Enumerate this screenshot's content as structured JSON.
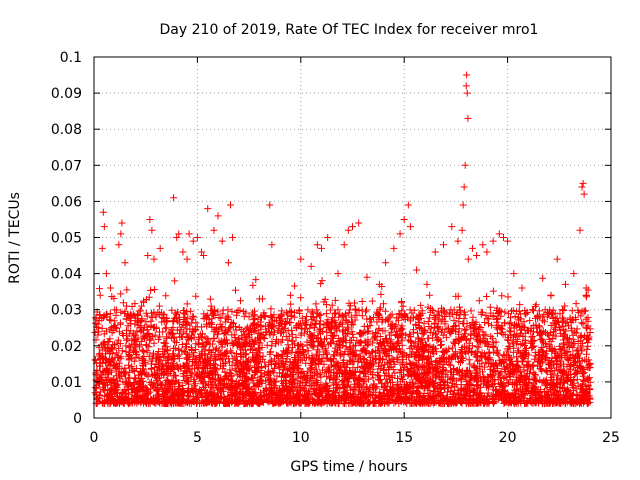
{
  "chart_data": {
    "type": "scatter",
    "title": "Day 210 of 2019, Rate Of TEC Index for receiver mro1",
    "xlabel": "GPS time / hours",
    "ylabel": "ROTI / TECUs",
    "xlim": [
      0,
      25
    ],
    "ylim": [
      0,
      0.1
    ],
    "xticks": [
      0,
      5,
      10,
      15,
      20,
      25
    ],
    "yticks": [
      0,
      0.01,
      0.02,
      0.03,
      0.04,
      0.05,
      0.06,
      0.07,
      0.08,
      0.09,
      0.1
    ],
    "xtick_labels": [
      "0",
      "5",
      "10",
      "15",
      "20",
      "25"
    ],
    "ytick_labels": [
      "0",
      "0.01",
      "0.02",
      "0.03",
      "0.04",
      "0.05",
      "0.06",
      "0.07",
      "0.08",
      "0.09",
      "0.1"
    ],
    "grid": true,
    "marker": "+",
    "series": [
      {
        "name": "ROTI",
        "color": "#ff0000",
        "points": [
          [
            0.1,
            0.012
          ],
          [
            0.2,
            0.025
          ],
          [
            0.3,
            0.034
          ],
          [
            0.4,
            0.047
          ],
          [
            0.45,
            0.057
          ],
          [
            0.5,
            0.053
          ],
          [
            0.6,
            0.04
          ],
          [
            0.8,
            0.036
          ],
          [
            1.0,
            0.03
          ],
          [
            1.2,
            0.048
          ],
          [
            1.3,
            0.051
          ],
          [
            1.35,
            0.054
          ],
          [
            1.5,
            0.043
          ],
          [
            1.7,
            0.02
          ],
          [
            2.0,
            0.023
          ],
          [
            2.3,
            0.031
          ],
          [
            2.6,
            0.045
          ],
          [
            2.7,
            0.055
          ],
          [
            2.8,
            0.052
          ],
          [
            2.9,
            0.044
          ],
          [
            3.0,
            0.028
          ],
          [
            3.2,
            0.047
          ],
          [
            3.5,
            0.025
          ],
          [
            3.9,
            0.038
          ],
          [
            4.0,
            0.05
          ],
          [
            4.1,
            0.051
          ],
          [
            3.85,
            0.061
          ],
          [
            4.3,
            0.046
          ],
          [
            4.5,
            0.044
          ],
          [
            4.6,
            0.051
          ],
          [
            4.8,
            0.049
          ],
          [
            5.0,
            0.05
          ],
          [
            5.2,
            0.046
          ],
          [
            5.3,
            0.045
          ],
          [
            5.5,
            0.058
          ],
          [
            5.8,
            0.052
          ],
          [
            6.0,
            0.056
          ],
          [
            6.2,
            0.049
          ],
          [
            6.5,
            0.043
          ],
          [
            6.6,
            0.059
          ],
          [
            6.7,
            0.05
          ],
          [
            7.0,
            0.022
          ],
          [
            7.5,
            0.028
          ],
          [
            8.0,
            0.033
          ],
          [
            8.5,
            0.059
          ],
          [
            8.6,
            0.048
          ],
          [
            9.0,
            0.027
          ],
          [
            9.5,
            0.034
          ],
          [
            10.0,
            0.044
          ],
          [
            10.5,
            0.042
          ],
          [
            10.8,
            0.048
          ],
          [
            11.0,
            0.047
          ],
          [
            11.3,
            0.05
          ],
          [
            11.8,
            0.04
          ],
          [
            12.1,
            0.048
          ],
          [
            12.3,
            0.052
          ],
          [
            12.5,
            0.053
          ],
          [
            12.8,
            0.054
          ],
          [
            13.2,
            0.039
          ],
          [
            13.8,
            0.037
          ],
          [
            14.1,
            0.043
          ],
          [
            14.5,
            0.047
          ],
          [
            14.8,
            0.051
          ],
          [
            15.0,
            0.055
          ],
          [
            15.2,
            0.059
          ],
          [
            15.3,
            0.053
          ],
          [
            15.6,
            0.041
          ],
          [
            16.1,
            0.037
          ],
          [
            16.5,
            0.046
          ],
          [
            16.9,
            0.048
          ],
          [
            17.3,
            0.053
          ],
          [
            17.6,
            0.049
          ],
          [
            17.8,
            0.052
          ],
          [
            17.85,
            0.059
          ],
          [
            17.9,
            0.064
          ],
          [
            17.95,
            0.07
          ],
          [
            18.0,
            0.092
          ],
          [
            18.02,
            0.095
          ],
          [
            18.05,
            0.09
          ],
          [
            18.08,
            0.083
          ],
          [
            18.1,
            0.044
          ],
          [
            18.3,
            0.047
          ],
          [
            18.5,
            0.045
          ],
          [
            18.8,
            0.048
          ],
          [
            19.0,
            0.046
          ],
          [
            19.3,
            0.049
          ],
          [
            19.6,
            0.051
          ],
          [
            19.8,
            0.05
          ],
          [
            20.0,
            0.049
          ],
          [
            20.3,
            0.04
          ],
          [
            20.7,
            0.036
          ],
          [
            21.2,
            0.03
          ],
          [
            21.7,
            0.028
          ],
          [
            22.1,
            0.034
          ],
          [
            22.4,
            0.044
          ],
          [
            22.8,
            0.037
          ],
          [
            23.2,
            0.04
          ],
          [
            23.5,
            0.052
          ],
          [
            23.6,
            0.064
          ],
          [
            23.65,
            0.065
          ],
          [
            23.7,
            0.062
          ],
          [
            23.8,
            0.036
          ],
          [
            23.9,
            0.022
          ]
        ]
      }
    ]
  }
}
